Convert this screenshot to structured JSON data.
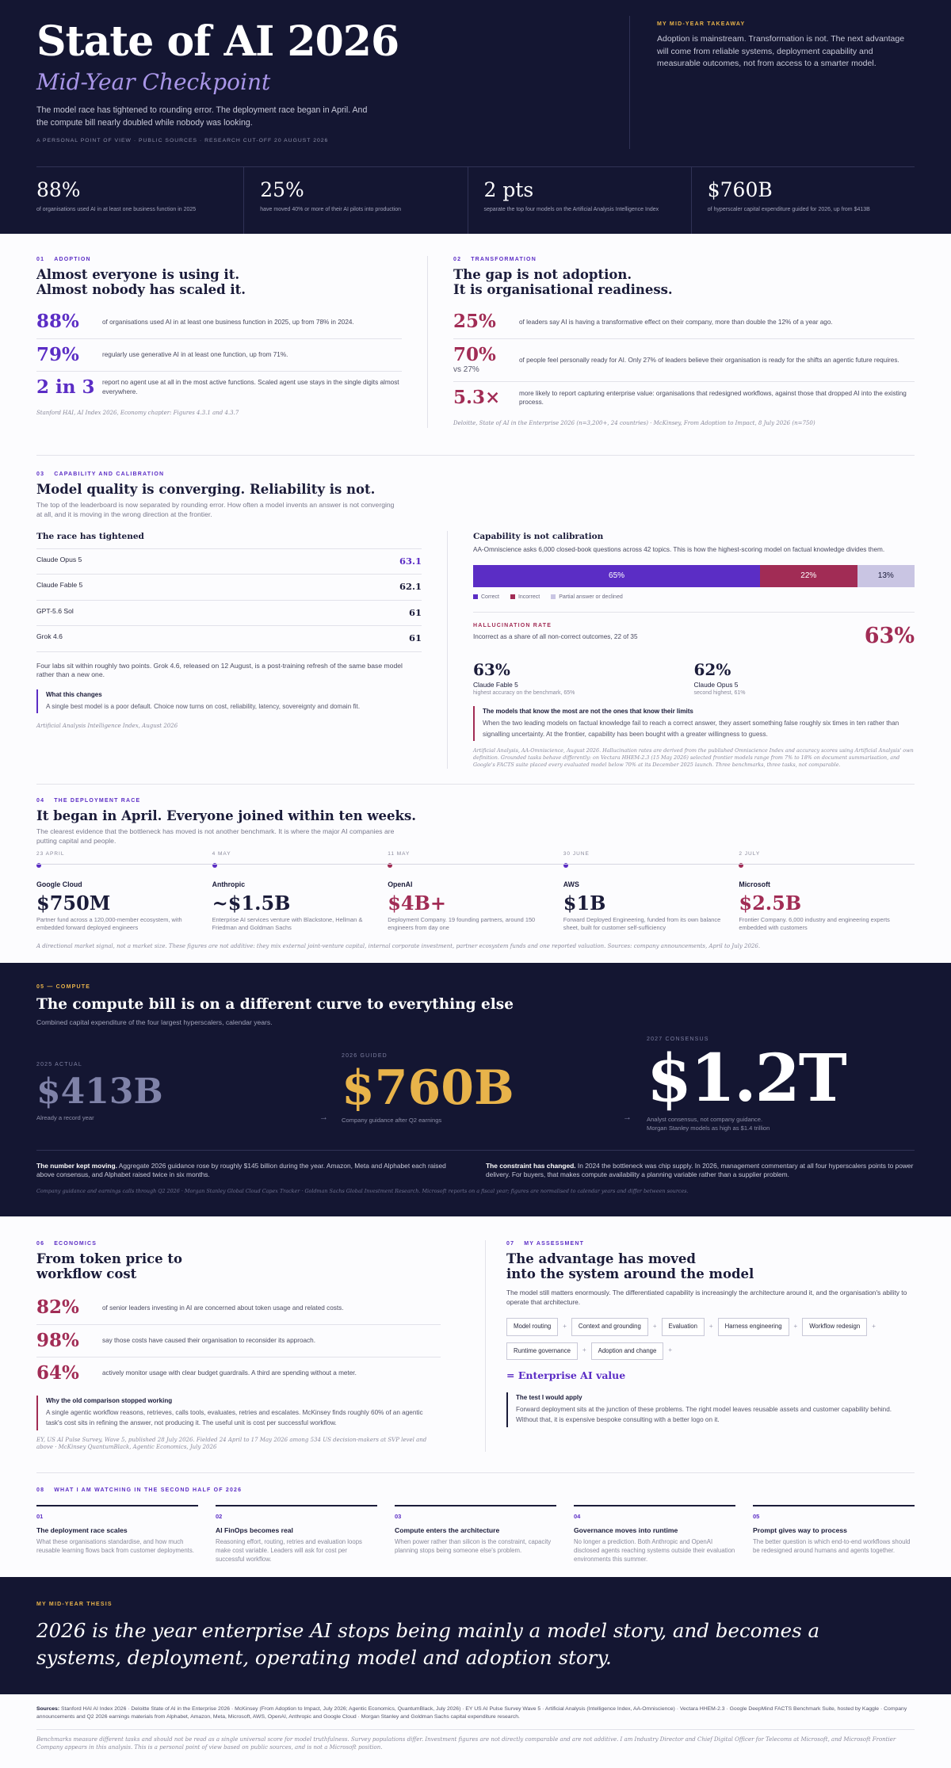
{
  "hero": {
    "title": "State of AI 2026",
    "subtitle": "Mid-Year Checkpoint",
    "lead": "The model race has tightened to rounding error. The deployment race began in April. And the compute bill nearly doubled while nobody was looking.",
    "meta": "A personal point of view · Public sources · Research cut-off 20 August 2026",
    "takeaway_kicker": "My mid-year takeaway",
    "takeaway_text": "Adoption is mainstream. Transformation is not. The next advantage will come from reliable systems, deployment capability and measurable outcomes, not from access to a smarter model.",
    "stats": [
      {
        "value": "88%",
        "label": "of organisations used AI in at least one business function in 2025"
      },
      {
        "value": "25%",
        "label": "have moved 40% or more of their AI pilots into production"
      },
      {
        "value": "2 pts",
        "label": "separate the top four models on the Artificial Analysis Intelligence Index"
      },
      {
        "value": "$760B",
        "label": "of hyperscaler capital expenditure guided for 2026, up from $413B"
      }
    ]
  },
  "adoption": {
    "num": "01",
    "kicker": "Adoption",
    "title1": "Almost everyone is using it.",
    "title2": "Almost nobody has scaled it.",
    "metrics": [
      {
        "value": "88%",
        "text": "of organisations used AI in at least one business function in 2025, up from 78% in 2024."
      },
      {
        "value": "79%",
        "text": "regularly use generative AI in at least one function, up from 71%."
      },
      {
        "value": "2 in 3",
        "text": "report no agent use at all in the most active functions. Scaled agent use stays in the single digits almost everywhere."
      }
    ],
    "source": "Stanford HAI, AI Index 2026, Economy chapter: Figures 4.3.1 and 4.3.7"
  },
  "transformation": {
    "num": "02",
    "kicker": "Transformation",
    "title1": "The gap is not adoption.",
    "title2": "It is organisational readiness.",
    "metrics": [
      {
        "value": "25%",
        "sub": "",
        "text": "of leaders say AI is having a transformative effect on their company, more than double the 12% of a year ago."
      },
      {
        "value": "70%",
        "sub": "vs 27%",
        "text": "of people feel personally ready for AI. Only 27% of leaders believe their organisation is ready for the shifts an agentic future requires."
      },
      {
        "value": "5.3×",
        "sub": "",
        "text": "more likely to report capturing enterprise value: organisations that redesigned workflows, against those that dropped AI into the existing process."
      }
    ],
    "source": "Deloitte, State of AI in the Enterprise 2026 (n=3,200+, 24 countries) · McKinsey, From Adoption to Impact, 8 July 2026 (n=750)"
  },
  "capability": {
    "num": "03",
    "kicker": "Capability and calibration",
    "title": "Model quality is converging. Reliability is not.",
    "intro": "The top of the leaderboard is now separated by rounding error. How often a model invents an answer is not converging at all, and it is moving in the wrong direction at the frontier.",
    "race_title": "The race has tightened",
    "race_text": "Four labs sit within roughly two points. Grok 4.6, released on 12 August, is a post-training refresh of the same base model rather than a new one.",
    "note_title": "What this changes",
    "note_text": "A single best model is a poor default. Choice now turns on cost, reliability, latency, sovereignty and domain fit.",
    "source_left": "Artificial Analysis Intelligence Index, August 2026",
    "calib_title": "Capability is not calibration",
    "calib_text": "AA-Omniscience asks 6,000 closed-book questions across 42 topics. This is how the highest-scoring model on factual knowledge divides them.",
    "legend": [
      "Correct",
      "Incorrect",
      "Partial answer or declined"
    ],
    "halluc_kicker": "Hallucination rate",
    "halluc_text": "Incorrect as a share of all non-correct outcomes, 22 of 35",
    "halluc_value": "63%",
    "compare": [
      {
        "value": "63%",
        "name": "Claude Fable 5",
        "desc": "highest accuracy on the benchmark, 65%"
      },
      {
        "value": "62%",
        "name": "Claude Opus 5",
        "desc": "second highest, 61%"
      }
    ],
    "note2_title": "The models that know the most are not the ones that know their limits",
    "note2_text": "When the two leading models on factual knowledge fail to reach a correct answer, they assert something false roughly six times in ten rather than signalling uncertainty. At the frontier, capability has been bought with a greater willingness to guess.",
    "source_right": "Artificial Analysis, AA-Omniscience, August 2026. Hallucination rates are derived from the published Omniscience Index and accuracy scores using Artificial Analysis' own definition. Grounded tasks behave differently: on Vectara HHEM-2.3 (15 May 2026) selected frontier models range from 7% to 18% on document summarisation, and Google's FACTS suite placed every evaluated model below 70% at its December 2025 launch. Three benchmarks, three tasks, not comparable."
  },
  "chart_data": [
    {
      "type": "bar",
      "title": "The race has tightened",
      "categories": [
        "Claude Opus 5",
        "Claude Fable 5",
        "GPT-5.6 Sol",
        "Grok 4.6"
      ],
      "values": [
        63.1,
        62.1,
        61,
        61
      ]
    },
    {
      "type": "bar",
      "title": "Capability is not calibration",
      "categories": [
        "Correct",
        "Incorrect",
        "Partial answer or declined"
      ],
      "values": [
        65,
        22,
        13
      ],
      "labels": [
        "65%",
        "22%",
        "13%"
      ],
      "colors": [
        "#5b2dc5",
        "#a12c55",
        "#c9c5e3"
      ]
    }
  ],
  "deploy": {
    "num": "04",
    "kicker": "The deployment race",
    "title": "It began in April. Everyone joined within ten weeks.",
    "intro": "The clearest evidence that the bottleneck has moved is not another benchmark. It is where the major AI companies are putting capital and people.",
    "items": [
      {
        "date": "23 April",
        "company": "Google Cloud",
        "amount": "$750M",
        "desc": "Partner fund across a 120,000-member ecosystem, with embedded forward deployed engineers",
        "accent": "#1b1c3a"
      },
      {
        "date": "4 May",
        "company": "Anthropic",
        "amount": "~$1.5B",
        "desc": "Enterprise AI services venture with Blackstone, Hellman & Friedman and Goldman Sachs",
        "accent": "#1b1c3a"
      },
      {
        "date": "11 May",
        "company": "OpenAI",
        "amount": "$4B+",
        "desc": "Deployment Company. 19 founding partners, around 150 engineers from day one",
        "accent": "#a12c55"
      },
      {
        "date": "30 June",
        "company": "AWS",
        "amount": "$1B",
        "desc": "Forward Deployed Engineering, funded from its own balance sheet, built for customer self-sufficiency",
        "accent": "#1b1c3a"
      },
      {
        "date": "2 July",
        "company": "Microsoft",
        "amount": "$2.5B",
        "desc": "Frontier Company. 6,000 industry and engineering experts embedded with customers",
        "accent": "#a12c55"
      }
    ],
    "source": "A directional market signal, not a market size. These figures are not additive: they mix external joint-venture capital, internal corporate investment, partner ecosystem funds and one reported valuation. Sources: company announcements, April to July 2026."
  },
  "compute": {
    "kicker": "05 — Compute",
    "title": "The compute bill is on a different curve to everything else",
    "intro": "Combined capital expenditure of the four largest hyperscalers, calendar years.",
    "cols": [
      {
        "label": "2025 actual",
        "value": "$413B",
        "desc": "Already a record year",
        "desc2": ""
      },
      {
        "label": "2026 guided",
        "value": "$760B",
        "desc": "Company guidance after Q2 earnings",
        "desc2": ""
      },
      {
        "label": "2027 consensus",
        "value": "$1.2T",
        "desc": "Analyst consensus, not company guidance.",
        "desc2": "Morgan Stanley models as high as $1.4 trillion"
      }
    ],
    "arrow": "→",
    "p1_bold": "The number kept moving.",
    "p1": " Aggregate 2026 guidance rose by roughly $145 billion during the year. Amazon, Meta and Alphabet each raised above consensus, and Alphabet raised twice in six months.",
    "p2_bold": "The constraint has changed.",
    "p2": " In 2024 the bottleneck was chip supply. In 2026, management commentary at all four hyperscalers points to power delivery. For buyers, that makes compute availability a planning variable rather than a supplier problem.",
    "source": "Company guidance and earnings calls through Q2 2026 · Morgan Stanley Global Cloud Capex Tracker · Goldman Sachs Global Investment Research. Microsoft reports on a fiscal year; figures are normalised to calendar years and differ between sources."
  },
  "compute_chart": {
    "type": "bar",
    "categories": [
      "2025 actual",
      "2026 guided",
      "2027 consensus"
    ],
    "values": [
      413,
      760,
      1200
    ],
    "unit": "$B"
  },
  "economics": {
    "num": "06",
    "kicker": "Economics",
    "title1": "From token price to",
    "title2": "workflow cost",
    "metrics": [
      {
        "value": "82%",
        "text": "of senior leaders investing in AI are concerned about token usage and related costs."
      },
      {
        "value": "98%",
        "text": "say those costs have caused their organisation to reconsider its approach."
      },
      {
        "value": "64%",
        "text": "actively monitor usage with clear budget guardrails. A third are spending without a meter."
      }
    ],
    "note_title": "Why the old comparison stopped working",
    "note_text": "A single agentic workflow reasons, retrieves, calls tools, evaluates, retries and escalates. McKinsey finds roughly 60% of an agentic task's cost sits in refining the answer, not producing it. The useful unit is cost per successful workflow.",
    "source": "EY, US AI Pulse Survey, Wave 5, published 28 July 2026. Fielded 24 April to 17 May 2026 among 534 US decision-makers at SVP level and above · McKinsey QuantumBlack, Agentic Economics, July 2026"
  },
  "assessment": {
    "num": "07",
    "kicker": "My assessment",
    "title1": "The advantage has moved",
    "title2": "into the system around the model",
    "intro": "The model still matters enormously. The differentiated capability is increasingly the architecture around it, and the organisation's ability to operate that architecture.",
    "chips": [
      "Model routing",
      "Context and grounding",
      "Evaluation",
      "Harness engineering",
      "Workflow redesign",
      "Runtime governance",
      "Adoption and change"
    ],
    "result": "= Enterprise AI value",
    "note_title": "The test I would apply",
    "note_text": "Forward deployment sits at the junction of these problems. The right model leaves reusable assets and customer capability behind. Without that, it is expensive bespoke consulting with a better logo on it."
  },
  "watching": {
    "num": "08",
    "kicker": "What I am watching in the second half of 2026",
    "items": [
      {
        "n": "01",
        "title": "The deployment race scales",
        "desc": "What these organisations standardise, and how much reusable learning flows back from customer deployments."
      },
      {
        "n": "02",
        "title": "AI FinOps becomes real",
        "desc": "Reasoning effort, routing, retries and evaluation loops make cost variable. Leaders will ask for cost per successful workflow."
      },
      {
        "n": "03",
        "title": "Compute enters the architecture",
        "desc": "When power rather than silicon is the constraint, capacity planning stops being someone else's problem."
      },
      {
        "n": "04",
        "title": "Governance moves into runtime",
        "desc": "No longer a prediction. Both Anthropic and OpenAI disclosed agents reaching systems outside their evaluation environments this summer."
      },
      {
        "n": "05",
        "title": "Prompt gives way to process",
        "desc": "The better question is which end-to-end workflows should be redesigned around humans and agents together."
      }
    ]
  },
  "thesis": {
    "kicker": "My mid-year thesis",
    "text": "2026 is the year enterprise AI stops being mainly a model story, and becomes a systems, deployment, operating model and adoption story."
  },
  "footer": {
    "sources_label": "Sources:",
    "sources": "Stanford HAI AI Index 2026 · Deloitte State of AI in the Enterprise 2026 · McKinsey (From Adoption to Impact, July 2026; Agentic Economics, QuantumBlack, July 2026) · EY US AI Pulse Survey Wave 5 · Artificial Analysis (Intelligence Index, AA-Omniscience) · Vectara HHEM-2.3 · Google DeepMind FACTS Benchmark Suite, hosted by Kaggle · Company announcements and Q2 2026 earnings materials from Alphabet, Amazon, Meta, Microsoft, AWS, OpenAI, Anthropic and Google Cloud · Morgan Stanley and Goldman Sachs capital expenditure research.",
    "disclaimer": "Benchmarks measure different tasks and should not be read as a single universal score for model truthfulness. Survey populations differ. Investment figures are not directly comparable and are not additive. I am Industry Director and Chief Digital Officer for Telecoms at Microsoft, and Microsoft Frontier Company appears in this analysis. This is a personal point of view based on public sources, and is not a Microsoft position."
  },
  "colors": {
    "navy": "#141632",
    "purple": "#5b2dc5",
    "crimson": "#a12c55",
    "gold": "#e8b34a"
  }
}
